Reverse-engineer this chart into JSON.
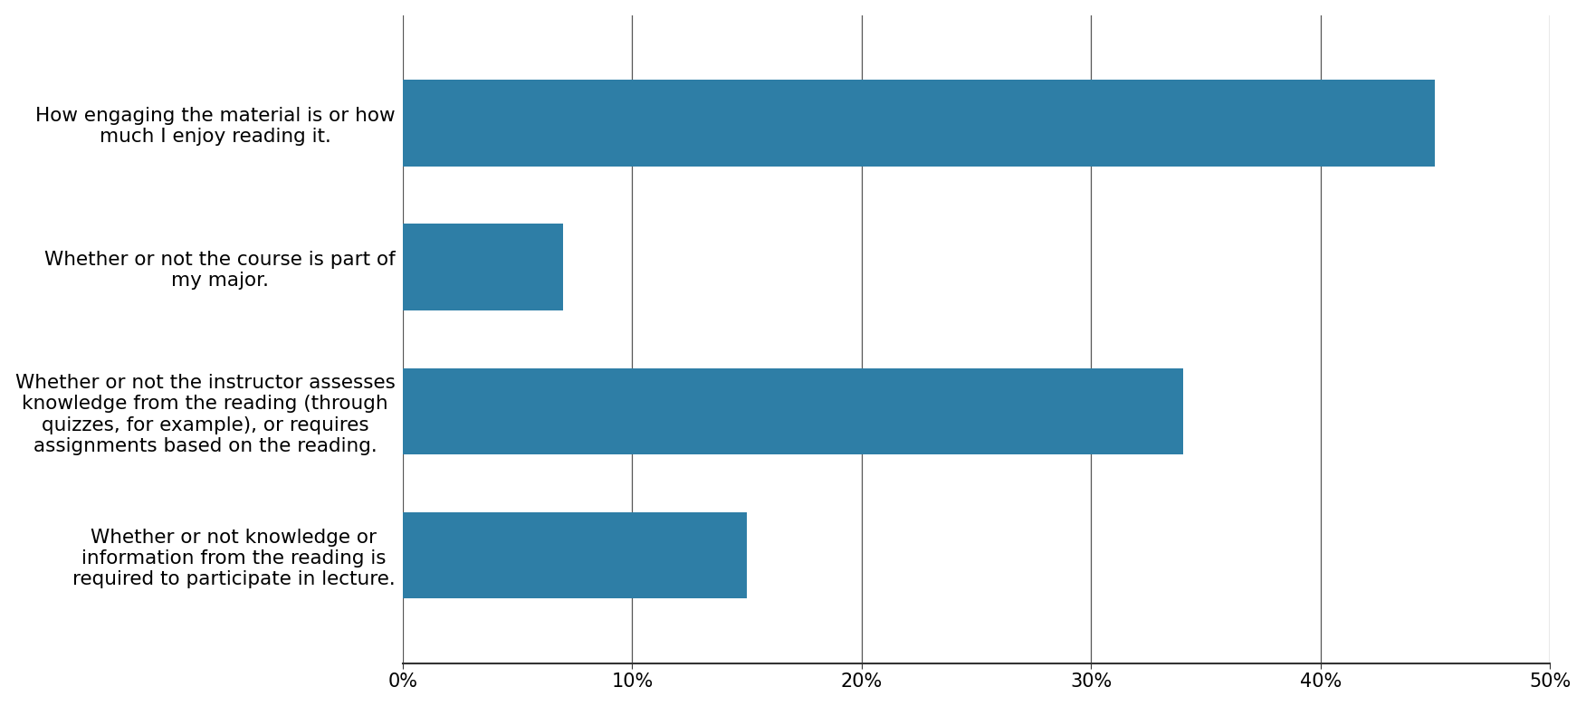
{
  "categories": [
    "How engaging the material is or how\nmuch I enjoy reading it.",
    "Whether or not the course is part of\nmy major.",
    "Whether or not the instructor assesses\nknowledge from the reading (through\nquizzes, for example), or requires\nassignments based on the reading.",
    "Whether or not knowledge or\ninformation from the reading is\nrequired to participate in lecture."
  ],
  "values": [
    45,
    7,
    34,
    15
  ],
  "bar_color": "#2e7ea6",
  "background_color": "#ffffff",
  "xlim": [
    0,
    0.5
  ],
  "xticks": [
    0.0,
    0.1,
    0.2,
    0.3,
    0.4,
    0.5
  ],
  "bar_height": 0.6,
  "label_fontsize": 15.5,
  "tick_fontsize": 15
}
